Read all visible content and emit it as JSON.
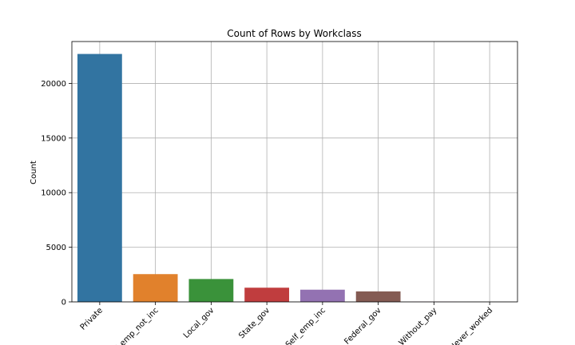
{
  "chart_data": {
    "type": "bar",
    "title": "Count of Rows by Workclass",
    "xlabel": "",
    "ylabel": "Count",
    "categories": [
      "Private",
      "Self_emp_not_inc",
      "Local_gov",
      "State_gov",
      "Self_emp_inc",
      "Federal_gov",
      "Without_pay",
      "Never_worked"
    ],
    "values": [
      22696,
      2541,
      2093,
      1298,
      1116,
      960,
      14,
      7
    ],
    "colors": [
      "#3274a1",
      "#e1812c",
      "#3a923a",
      "#c03d3e",
      "#9372b2",
      "#845b53",
      "#d684bd",
      "#7f7f7f"
    ],
    "ylim": [
      0,
      23834
    ],
    "yticks": [
      0,
      5000,
      10000,
      15000,
      20000
    ],
    "ytick_labels": [
      "0",
      "5000",
      "10000",
      "15000",
      "20000"
    ],
    "grid": true,
    "legend": "none"
  }
}
